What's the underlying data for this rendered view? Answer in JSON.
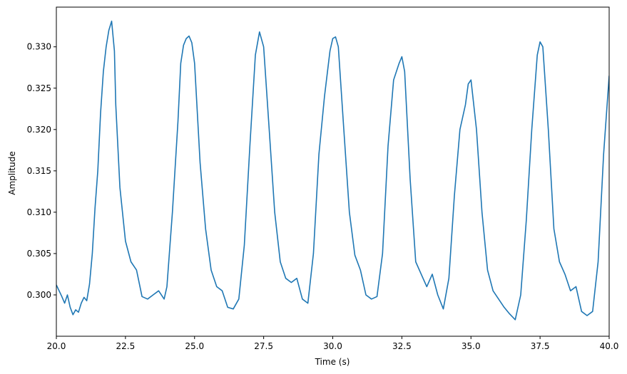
{
  "chart_data": {
    "type": "line",
    "xlabel": "Time (s)",
    "ylabel": "Amplitude",
    "xlim": [
      20.0,
      40.0
    ],
    "ylim": [
      0.295,
      0.3348
    ],
    "grid": false,
    "xticks": [
      20.0,
      22.5,
      25.0,
      27.5,
      30.0,
      32.5,
      35.0,
      37.5,
      40.0
    ],
    "xtick_labels": [
      "20.0",
      "22.5",
      "25.0",
      "27.5",
      "30.0",
      "32.5",
      "35.0",
      "37.5",
      "40.0"
    ],
    "yticks": [
      0.3,
      0.305,
      0.31,
      0.315,
      0.32,
      0.325,
      0.33
    ],
    "ytick_labels": [
      "0.300",
      "0.305",
      "0.310",
      "0.315",
      "0.320",
      "0.325",
      "0.330"
    ],
    "line_color": "#1f77b4",
    "series": [
      {
        "x": [
          20.0,
          20.2,
          20.3,
          20.4,
          20.5,
          20.6,
          20.7,
          20.8,
          20.9,
          21.0,
          21.1,
          21.2,
          21.3,
          21.4,
          21.5,
          21.6,
          21.7,
          21.8,
          21.9,
          22.0,
          22.1,
          22.15,
          22.3,
          22.5,
          22.7,
          22.9,
          23.1,
          23.3,
          23.5,
          23.7,
          23.9,
          24.0,
          24.2,
          24.4,
          24.5,
          24.6,
          24.7,
          24.8,
          24.9,
          25.0,
          25.2,
          25.4,
          25.6,
          25.8,
          26.0,
          26.2,
          26.4,
          26.6,
          26.8,
          27.0,
          27.2,
          27.35,
          27.5,
          27.7,
          27.9,
          28.1,
          28.3,
          28.5,
          28.7,
          28.9,
          29.1,
          29.3,
          29.5,
          29.7,
          29.9,
          30.0,
          30.1,
          30.2,
          30.4,
          30.6,
          30.8,
          31.0,
          31.2,
          31.4,
          31.6,
          31.8,
          32.0,
          32.2,
          32.4,
          32.5,
          32.6,
          32.8,
          33.0,
          33.2,
          33.4,
          33.6,
          33.8,
          34.0,
          34.2,
          34.4,
          34.6,
          34.8,
          34.9,
          35.0,
          35.2,
          35.4,
          35.6,
          35.8,
          36.0,
          36.2,
          36.4,
          36.6,
          36.8,
          37.0,
          37.2,
          37.4,
          37.5,
          37.6,
          37.8,
          38.0,
          38.2,
          38.4,
          38.6,
          38.8,
          39.0,
          39.2,
          39.4,
          39.6,
          39.8,
          40.0
        ],
        "y": [
          0.3012,
          0.2998,
          0.299,
          0.3,
          0.2985,
          0.2976,
          0.2982,
          0.2979,
          0.299,
          0.2997,
          0.2993,
          0.3013,
          0.305,
          0.3105,
          0.315,
          0.322,
          0.327,
          0.33,
          0.332,
          0.3331,
          0.3295,
          0.323,
          0.313,
          0.3065,
          0.304,
          0.303,
          0.2998,
          0.2995,
          0.3,
          0.3005,
          0.2995,
          0.301,
          0.31,
          0.321,
          0.328,
          0.3302,
          0.331,
          0.3313,
          0.3305,
          0.328,
          0.316,
          0.308,
          0.303,
          0.301,
          0.3005,
          0.2985,
          0.2983,
          0.2995,
          0.306,
          0.318,
          0.329,
          0.3318,
          0.33,
          0.32,
          0.31,
          0.304,
          0.302,
          0.3015,
          0.302,
          0.2995,
          0.299,
          0.305,
          0.317,
          0.324,
          0.3295,
          0.331,
          0.3312,
          0.33,
          0.32,
          0.31,
          0.3048,
          0.303,
          0.3,
          0.2995,
          0.2998,
          0.305,
          0.318,
          0.326,
          0.328,
          0.3288,
          0.327,
          0.314,
          0.304,
          0.3025,
          0.301,
          0.3025,
          0.3,
          0.2983,
          0.302,
          0.312,
          0.32,
          0.323,
          0.3255,
          0.326,
          0.32,
          0.31,
          0.303,
          0.3005,
          0.2995,
          0.2985,
          0.2977,
          0.297,
          0.3,
          0.309,
          0.32,
          0.329,
          0.3306,
          0.33,
          0.32,
          0.308,
          0.304,
          0.3025,
          0.3005,
          0.301,
          0.298,
          0.2975,
          0.298,
          0.304,
          0.317,
          0.3265
        ]
      }
    ]
  }
}
